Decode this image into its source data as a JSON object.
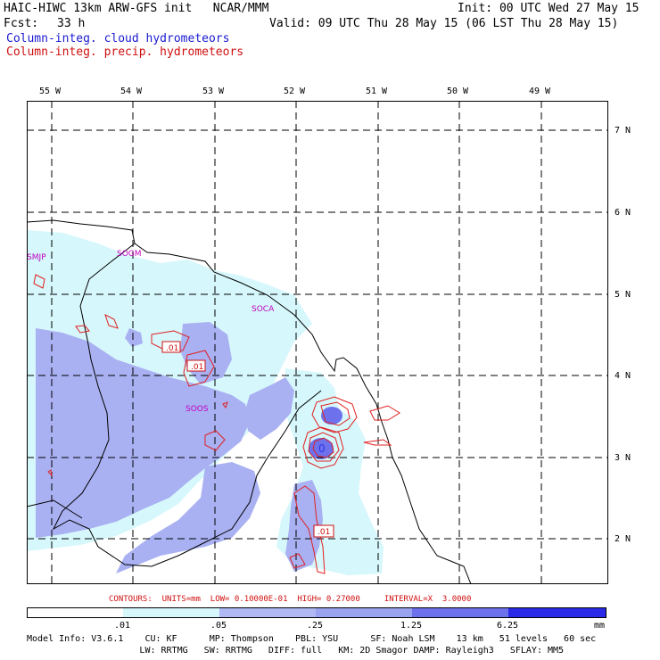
{
  "header": {
    "title": "HAIC-HIWC 13km ARW-GFS init   NCAR/MMM",
    "init": "Init: 00 UTC Wed 27 May 15",
    "fcst_label": "Fcst:",
    "fcst_value": "33 h",
    "valid": "Valid: 09 UTC Thu 28 May 15 (06 LST Thu 28 May 15)",
    "field1": "Column-integ. cloud hydrometeors",
    "field2": "Column-integ. precip. hydrometeors"
  },
  "colors": {
    "cloud_title": "#1a1ad0",
    "precip_title": "#d01010",
    "shade_1": "#d6f7fb",
    "shade_2": "#b0b9f4",
    "shade_3": "#9aa3ef",
    "shade_4": "#6d72ec",
    "shade_5": "#3434ea",
    "contour": "#e02020",
    "station": "#c000c0"
  },
  "longitude_labels": [
    "55 W",
    "54 W",
    "53 W",
    "52 W",
    "51 W",
    "50 W",
    "49 W"
  ],
  "latitude_labels": [
    "7 N",
    "6 N",
    "5 N",
    "4 N",
    "3 N",
    "2 N"
  ],
  "stations": [
    "SMJP",
    "SOGM",
    "SOCA",
    "SOOS"
  ],
  "contour_labels": [
    ".01",
    ".01",
    ".01"
  ],
  "contour_center_label": "0",
  "contours_line": "CONTOURS:  UNITS=mm  LOW= 0.10000E-01  HIGH= 0.27000     INTERVAL=X  3.0000",
  "colorbar": {
    "ticks": [
      ".01",
      ".05",
      ".25",
      "1.25",
      "6.25"
    ],
    "unit": "mm"
  },
  "footer": {
    "line1": "Model Info: V3.6.1    CU: KF      MP: Thompson    PBL: YSU      SF: Noah LSM    13 km   51 levels   60 sec",
    "line2": "                     LW: RRTMG   SW: RRTMG   DIFF: full   KM: 2D Smagor DAMP: Rayleigh3   SFLAY: MM5"
  }
}
